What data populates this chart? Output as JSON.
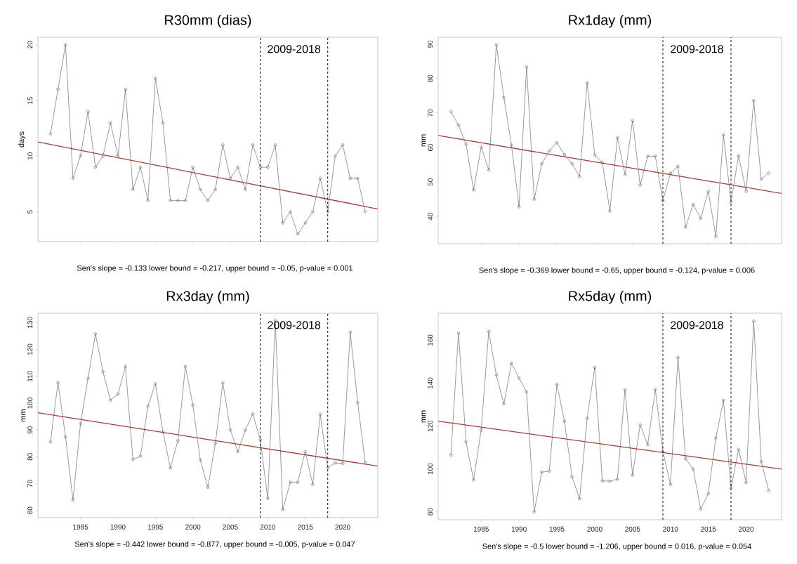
{
  "chart_data": [
    {
      "type": "line",
      "title": "R30mm (dias)",
      "ylabel": "days",
      "xlim": [
        1979.32,
        2024.68
      ],
      "ylim": [
        2.32,
        20.68
      ],
      "xticks": [
        1985,
        1990,
        1995,
        2000,
        2005,
        2010,
        2015,
        2020
      ],
      "yticks": [
        5,
        10,
        15,
        20
      ],
      "tick_labels": "y",
      "series": [
        {
          "x": [
            1981,
            1982,
            1983,
            1984,
            1985,
            1986,
            1987,
            1988,
            1989,
            1990,
            1991,
            1992,
            1993,
            1994,
            1995,
            1996,
            1997,
            1998,
            1999,
            2000,
            2001,
            2002,
            2003,
            2004,
            2005,
            2006,
            2007,
            2008,
            2009,
            2010,
            2011,
            2012,
            2013,
            2014,
            2015,
            2016,
            2017,
            2018,
            2019,
            2020,
            2021,
            2022,
            2023
          ],
          "values": [
            12,
            16,
            20,
            8,
            10,
            14,
            9,
            10,
            13,
            10,
            16,
            7,
            9,
            6,
            17,
            13,
            6,
            6,
            6,
            9,
            7,
            6,
            7,
            11,
            8,
            9,
            7,
            11,
            9,
            9,
            11,
            4,
            5,
            3,
            4,
            5,
            8,
            5,
            10,
            11,
            8,
            8,
            5
          ],
          "color": "#555555",
          "marker": "circle",
          "line_style": "solid"
        },
        {
          "type": "line",
          "x": [
            1979.32,
            2024.68
          ],
          "values": [
            11.27,
            5.25
          ],
          "color": "#b03a32",
          "marker": "none",
          "line_style": "solid"
        }
      ],
      "ref_lines": [
        {
          "axis": "x",
          "value": 2009,
          "color": "#000000",
          "line_style": "dashed"
        },
        {
          "axis": "x",
          "value": 2018,
          "color": "#000000",
          "line_style": "dashed"
        }
      ],
      "annotations": [
        "2009-2018",
        "Sen's slope = -0.133   lower bound = -0.217,   upper bound = -0.05,   p-value = 0.001"
      ]
    },
    {
      "type": "line",
      "title": "Rx1day (mm)",
      "ylabel": "mm",
      "xlim": [
        1979.32,
        2024.68
      ],
      "ylim": [
        32.1,
        92.0
      ],
      "xticks": [
        1985,
        1990,
        1995,
        2000,
        2005,
        2010,
        2015,
        2020
      ],
      "yticks": [
        40,
        50,
        60,
        70,
        80,
        90
      ],
      "tick_labels": "y",
      "series": [
        {
          "x": [
            1981,
            1982,
            1983,
            1984,
            1985,
            1986,
            1987,
            1988,
            1989,
            1990,
            1991,
            1992,
            1993,
            1994,
            1995,
            1996,
            1997,
            1998,
            1999,
            2000,
            2001,
            2002,
            2003,
            2004,
            2005,
            2006,
            2007,
            2008,
            2009,
            2010,
            2011,
            2012,
            2013,
            2014,
            2015,
            2016,
            2017,
            2018,
            2019,
            2020,
            2021,
            2022,
            2023
          ],
          "values": [
            70.4,
            66.5,
            61.0,
            47.7,
            60.2,
            53.5,
            89.8,
            74.5,
            60.7,
            42.8,
            83.4,
            45.0,
            55.3,
            59.0,
            61.4,
            57.9,
            55.3,
            51.6,
            78.8,
            57.8,
            55.7,
            41.6,
            62.9,
            52.1,
            67.8,
            49.1,
            57.5,
            57.5,
            44.6,
            52.5,
            54.5,
            36.9,
            43.5,
            39.4,
            47.3,
            34.2,
            63.7,
            44.2,
            57.6,
            47.3,
            73.6,
            50.8,
            52.6
          ],
          "color": "#555555",
          "marker": "circle",
          "line_style": "solid"
        },
        {
          "type": "line",
          "x": [
            1979.32,
            2024.68
          ],
          "values": [
            63.5,
            46.7
          ],
          "color": "#b03a32",
          "marker": "none",
          "line_style": "solid"
        }
      ],
      "ref_lines": [
        {
          "axis": "x",
          "value": 2009,
          "color": "#000000",
          "line_style": "dashed"
        },
        {
          "axis": "x",
          "value": 2018,
          "color": "#000000",
          "line_style": "dashed"
        }
      ],
      "annotations": [
        "2009-2018",
        "Sen's slope = -0.369   lower bound = -0.65,   upper bound = -0.124,   p-value = 0.006"
      ]
    },
    {
      "type": "line",
      "title": "Rx3day (mm)",
      "ylabel": "mm",
      "xlim": [
        1979.32,
        2024.68
      ],
      "ylim": [
        57.3,
        133.5
      ],
      "xticks": [
        1985,
        1990,
        1995,
        2000,
        2005,
        2010,
        2015,
        2020
      ],
      "yticks": [
        60,
        70,
        80,
        90,
        100,
        110,
        120,
        130
      ],
      "series": [
        {
          "x": [
            1981,
            1982,
            1983,
            1984,
            1985,
            1986,
            1987,
            1988,
            1989,
            1990,
            1991,
            1992,
            1993,
            1994,
            1995,
            1996,
            1997,
            1998,
            1999,
            2000,
            2001,
            2002,
            2003,
            2004,
            2005,
            2006,
            2007,
            2008,
            2009,
            2010,
            2011,
            2012,
            2013,
            2014,
            2015,
            2016,
            2017,
            2018,
            2019,
            2020,
            2021,
            2022,
            2023
          ],
          "values": [
            85.5,
            107.7,
            87.4,
            63.8,
            92.3,
            109.2,
            125.8,
            111.7,
            101.1,
            103.3,
            113.7,
            79.0,
            80.2,
            98.9,
            107.2,
            89.3,
            75.8,
            86.0,
            113.7,
            99.3,
            78.7,
            68.6,
            85.0,
            107.6,
            90.0,
            81.9,
            89.9,
            96.0,
            86.3,
            64.4,
            130.8,
            60.2,
            70.5,
            70.5,
            81.9,
            69.7,
            95.8,
            75.8,
            77.7,
            77.5,
            126.5,
            100.2,
            77.7
          ],
          "color": "#555555",
          "marker": "circle",
          "line_style": "solid"
        },
        {
          "type": "line",
          "x": [
            1979.32,
            2024.68
          ],
          "values": [
            96.4,
            76.5
          ],
          "color": "#b03a32",
          "marker": "none",
          "line_style": "solid"
        }
      ],
      "ref_lines": [
        {
          "axis": "x",
          "value": 2009,
          "color": "#000000",
          "line_style": "dashed"
        },
        {
          "axis": "x",
          "value": 2018,
          "color": "#000000",
          "line_style": "dashed"
        }
      ],
      "annotations": [
        "2009-2018",
        "Sen's slope = -0.442   lower bound = -0.877,   upper bound = -0.005,   p-value = 0.047"
      ]
    },
    {
      "type": "line",
      "title": "Rx5day (mm)",
      "ylabel": "mm",
      "xlim": [
        1979.32,
        2024.68
      ],
      "ylim": [
        76.3,
        172.6
      ],
      "xticks": [
        1985,
        1990,
        1995,
        2000,
        2005,
        2010,
        2015,
        2020
      ],
      "yticks": [
        80,
        100,
        120,
        140,
        160
      ],
      "series": [
        {
          "x": [
            1981,
            1982,
            1983,
            1984,
            1985,
            1986,
            1987,
            1988,
            1989,
            1990,
            1991,
            1992,
            1993,
            1994,
            1995,
            1996,
            1997,
            1998,
            1999,
            2000,
            2001,
            2002,
            2003,
            2004,
            2005,
            2006,
            2007,
            2008,
            2009,
            2010,
            2011,
            2012,
            2013,
            2014,
            2015,
            2016,
            2017,
            2018,
            2019,
            2020,
            2021,
            2022,
            2023
          ],
          "values": [
            106.5,
            163.4,
            112.6,
            94.9,
            118.1,
            164.1,
            143.9,
            130.3,
            149.3,
            142.4,
            135.9,
            79.9,
            98.5,
            98.9,
            139.5,
            122.2,
            96.4,
            86.1,
            123.6,
            147.3,
            94.4,
            94.3,
            95.2,
            137.0,
            97.1,
            120.5,
            111.3,
            137.2,
            108.2,
            92.7,
            152.0,
            104.7,
            100.0,
            81.3,
            88.5,
            114.4,
            132.0,
            91.0,
            109.1,
            93.6,
            169.0,
            103.4,
            89.8
          ],
          "color": "#555555",
          "marker": "circle",
          "line_style": "solid"
        },
        {
          "type": "line",
          "x": [
            1979.32,
            2024.68
          ],
          "values": [
            122.3,
            99.9
          ],
          "color": "#b03a32",
          "marker": "none",
          "line_style": "solid"
        }
      ],
      "ref_lines": [
        {
          "axis": "x",
          "value": 2009,
          "color": "#000000",
          "line_style": "dashed"
        },
        {
          "axis": "x",
          "value": 2018,
          "color": "#000000",
          "line_style": "dashed"
        }
      ],
      "annotations": [
        "2009-2018",
        "Sen's slope = -0.5   lower bound = -1.206,   upper bound = 0.016,   p-value = 0.054"
      ]
    }
  ]
}
